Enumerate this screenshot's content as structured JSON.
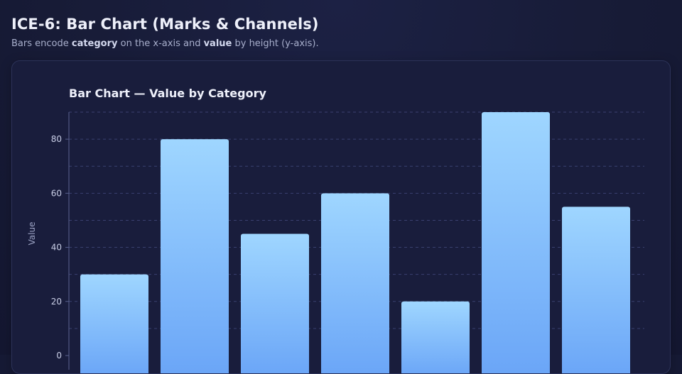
{
  "page": {
    "title": "ICE-6: Bar Chart (Marks & Channels)",
    "subtitle": {
      "part1": "Bars encode ",
      "bold1": "category",
      "part2": " on the x-axis and ",
      "bold2": "value",
      "part3": " by height (y-axis)."
    }
  },
  "colors": {
    "bar_top": "#9fd6ff",
    "bar_bottom": "#6aa5f7",
    "grid": "#3a4170",
    "axis": "#5a6290",
    "tick_text": "#c9cee6",
    "axis_label": "#9aa1c2"
  },
  "chart_data": {
    "type": "bar",
    "title": "Bar Chart — Value by Category",
    "xlabel": "",
    "ylabel": "Value",
    "ylim": [
      0,
      90
    ],
    "yticks": [
      0,
      20,
      40,
      60,
      80
    ],
    "grid": true,
    "values": [
      30,
      80,
      45,
      60,
      20,
      90,
      55
    ]
  }
}
